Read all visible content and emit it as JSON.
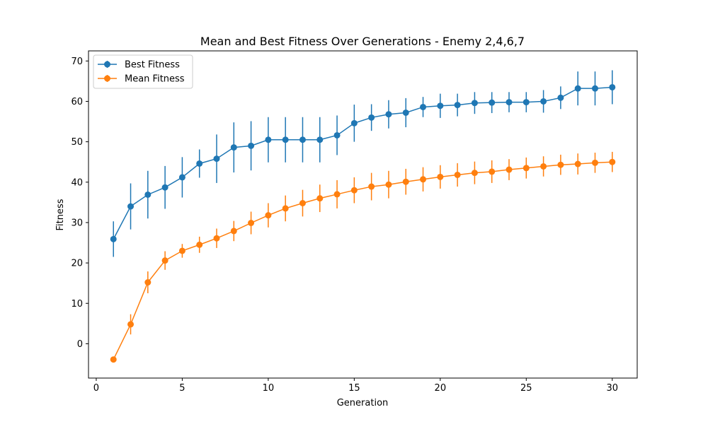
{
  "chart_data": {
    "type": "line",
    "title": "Mean and Best Fitness Over Generations - Enemy 2,4,6,7",
    "xlabel": "Generation",
    "ylabel": "Fitness",
    "xlim": [
      -0.45,
      31.45
    ],
    "ylim": [
      -8.5,
      72.5
    ],
    "xticks": [
      0,
      5,
      10,
      15,
      20,
      25,
      30
    ],
    "yticks": [
      0,
      10,
      20,
      30,
      40,
      50,
      60,
      70
    ],
    "grid": false,
    "legend_position": "top-left",
    "x": [
      1,
      2,
      3,
      4,
      5,
      6,
      7,
      8,
      9,
      10,
      11,
      12,
      13,
      14,
      15,
      16,
      17,
      18,
      19,
      20,
      21,
      22,
      23,
      24,
      25,
      26,
      27,
      28,
      29,
      30
    ],
    "series": [
      {
        "name": "Best Fitness",
        "color": "#1f77b4",
        "values": [
          25.9,
          34.0,
          36.9,
          38.7,
          41.2,
          44.6,
          45.8,
          48.6,
          49.0,
          50.5,
          50.5,
          50.5,
          50.5,
          51.6,
          54.6,
          56.0,
          56.8,
          57.2,
          58.6,
          58.9,
          59.1,
          59.6,
          59.7,
          59.8,
          59.8,
          60.0,
          60.9,
          63.2,
          63.2,
          63.5
        ],
        "errors": [
          4.4,
          5.7,
          5.9,
          5.3,
          5.0,
          3.5,
          6.0,
          6.2,
          6.1,
          5.6,
          5.6,
          5.6,
          5.6,
          4.9,
          4.6,
          3.3,
          3.5,
          3.6,
          2.5,
          3.0,
          2.8,
          2.7,
          2.6,
          2.5,
          2.5,
          2.8,
          2.8,
          4.2,
          4.2,
          4.2
        ]
      },
      {
        "name": "Mean Fitness",
        "color": "#ff7f0e",
        "values": [
          -3.9,
          4.8,
          15.2,
          20.6,
          23.0,
          24.5,
          26.1,
          27.9,
          29.9,
          31.8,
          33.5,
          34.8,
          36.0,
          37.0,
          38.0,
          38.9,
          39.4,
          40.1,
          40.7,
          41.3,
          41.8,
          42.3,
          42.6,
          43.1,
          43.5,
          43.9,
          44.3,
          44.5,
          44.8,
          45.0
        ],
        "errors": [
          0.5,
          2.5,
          2.7,
          2.3,
          1.7,
          2.0,
          2.4,
          2.5,
          2.8,
          3.0,
          3.2,
          3.3,
          3.4,
          3.5,
          3.2,
          3.4,
          3.4,
          3.2,
          3.0,
          2.9,
          2.9,
          2.8,
          2.8,
          2.6,
          2.6,
          2.5,
          2.5,
          2.6,
          2.5,
          2.5
        ]
      }
    ]
  }
}
